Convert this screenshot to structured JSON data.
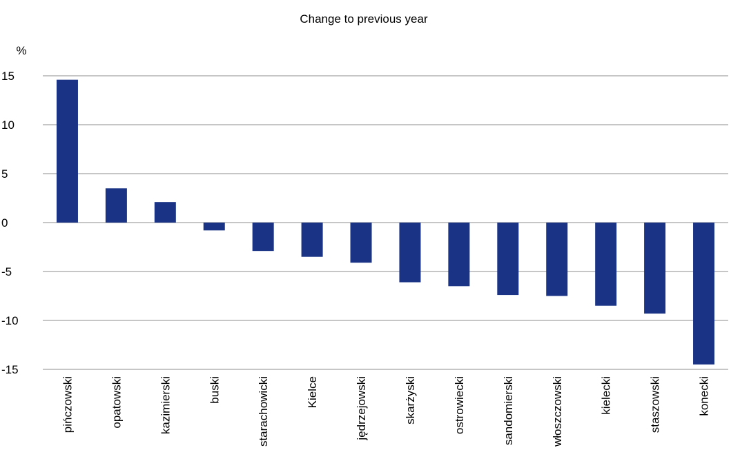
{
  "chart_data": {
    "type": "bar",
    "title": "Change to previous year",
    "ylabel": "%",
    "xlabel": "",
    "ylim": [
      -15,
      15
    ],
    "yticks": [
      15,
      10,
      5,
      0,
      -5,
      -10,
      -15
    ],
    "ytick_labels": [
      "15",
      "10",
      "5",
      "0",
      "-5",
      "-10",
      "-15"
    ],
    "grid": true,
    "categories": [
      "pińczowski",
      "opatowski",
      "kazimierski",
      "buski",
      "starachowicki",
      "Kielce",
      "jędrzejowski",
      "skarżyski",
      "ostrowiecki",
      "sandomierski",
      "włoszczowski",
      "kielecki",
      "staszowski",
      "konecki"
    ],
    "values": [
      14.6,
      3.5,
      2.1,
      -0.8,
      -2.9,
      -3.5,
      -4.1,
      -6.1,
      -6.5,
      -7.4,
      -7.5,
      -8.5,
      -9.3,
      -14.5
    ],
    "bar_color": "#1a3384",
    "grid_color": "#8c8c8c"
  }
}
